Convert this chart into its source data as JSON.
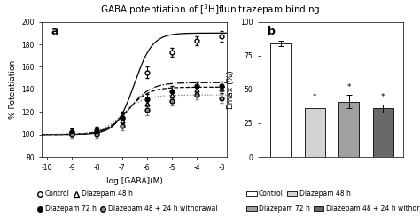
{
  "title": "GABA potentiation of [$^{3}$H]flunitrazepam binding",
  "panel_a_label": "a",
  "panel_b_label": "b",
  "x_log": [
    -9,
    -8,
    -7,
    -6,
    -5,
    -4,
    -3
  ],
  "control_y": [
    102,
    102,
    115,
    155,
    173,
    183,
    187
  ],
  "control_err": [
    3,
    3,
    5,
    5,
    4,
    4,
    5
  ],
  "diaz48_y": [
    101,
    103,
    112,
    127,
    135,
    140,
    141
  ],
  "diaz48_err": [
    3,
    3,
    4,
    5,
    4,
    4,
    4
  ],
  "diaz72_y": [
    102,
    104,
    115,
    131,
    138,
    143,
    143
  ],
  "diaz72_err": [
    3,
    3,
    4,
    5,
    5,
    4,
    4
  ],
  "diaz48wd_y": [
    100,
    100,
    108,
    122,
    130,
    135,
    132
  ],
  "diaz48wd_err": [
    3,
    3,
    4,
    5,
    4,
    4,
    4
  ],
  "bar_values": [
    84,
    36,
    41,
    36
  ],
  "bar_errors": [
    2,
    3,
    5,
    3
  ],
  "bar_colors": [
    "#ffffff",
    "#d3d3d3",
    "#a0a0a0",
    "#696969"
  ],
  "ylabel_a": "% Potentiation",
  "xlabel_a": "log [GABA](M)",
  "ylabel_b": "Emax (%)",
  "ylim_a": [
    80,
    200
  ],
  "yticks_a": [
    80,
    100,
    120,
    140,
    160,
    180,
    200
  ],
  "xlim_a": [
    -10.2,
    -2.8
  ],
  "xticks_a": [
    -10,
    -9,
    -8,
    -7,
    -6,
    -5,
    -4,
    -3
  ],
  "ylim_b": [
    0,
    100
  ],
  "yticks_b": [
    0,
    25,
    50,
    75,
    100
  ]
}
